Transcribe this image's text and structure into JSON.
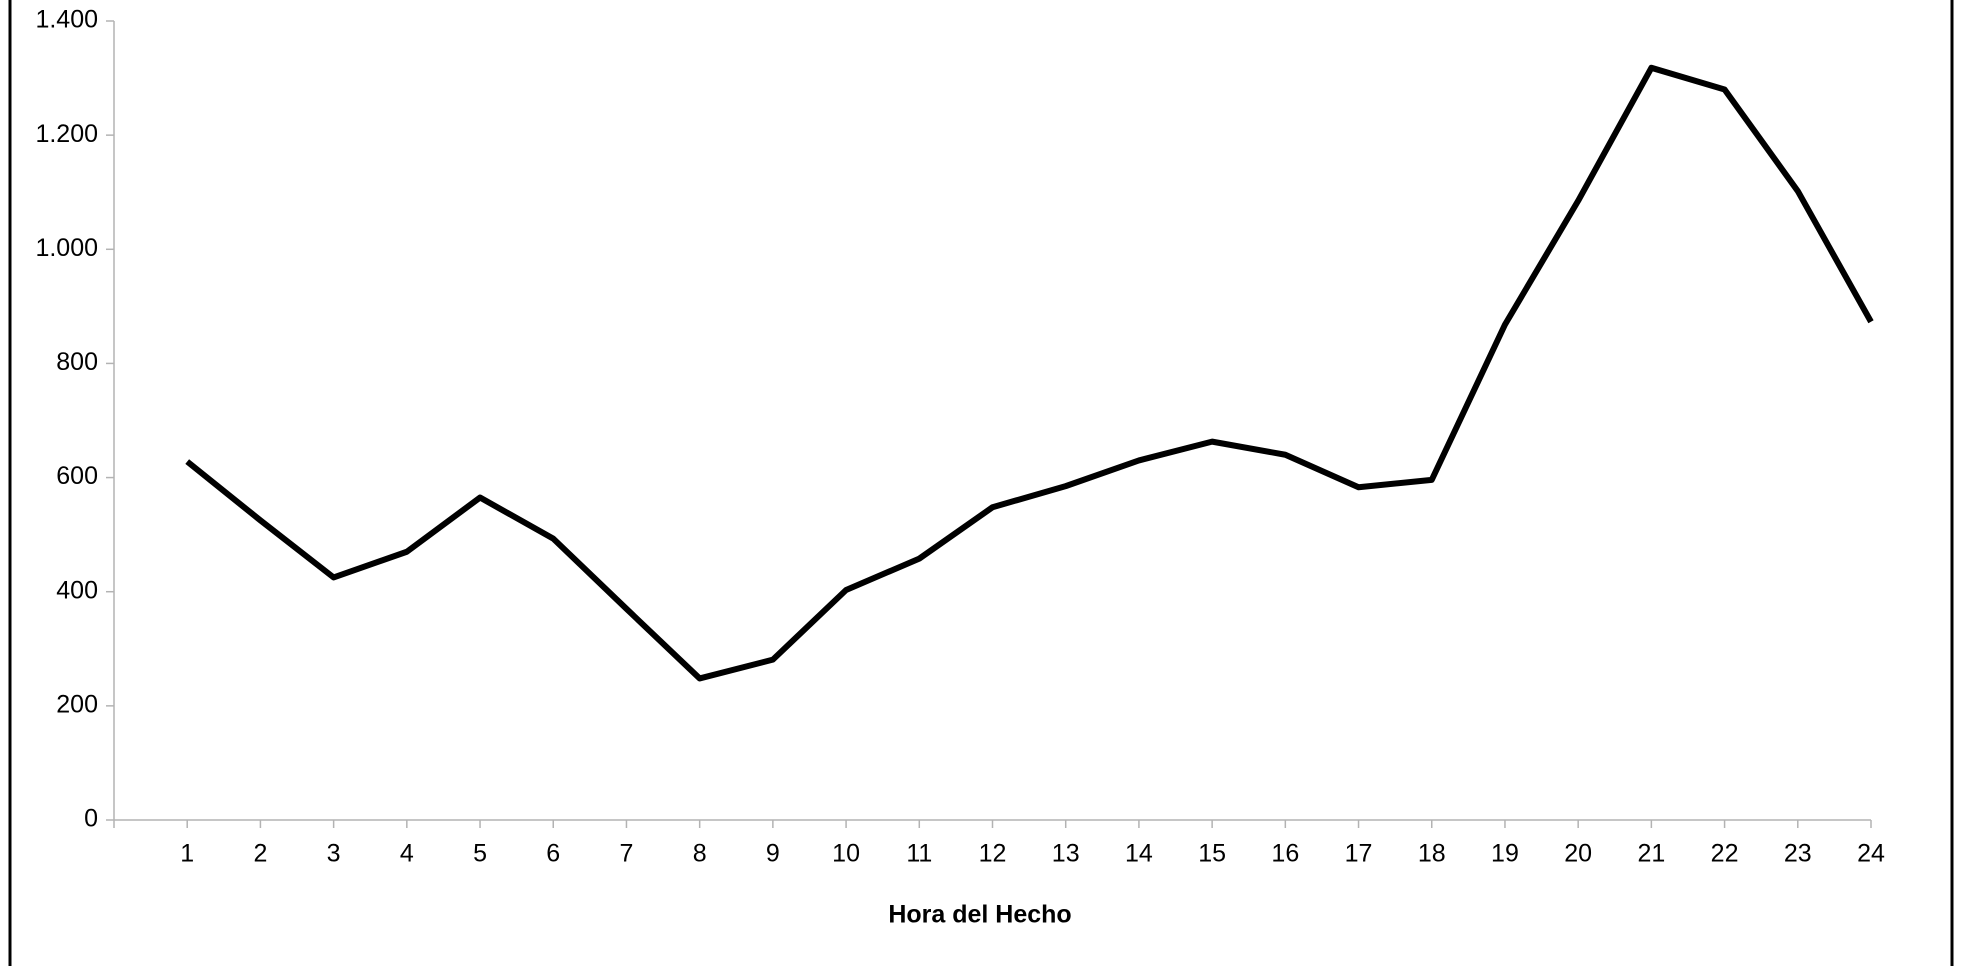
{
  "chart_data": {
    "type": "line",
    "x_label": "Hora del Hecho",
    "categories": [
      "1",
      "2",
      "3",
      "4",
      "5",
      "6",
      "7",
      "8",
      "9",
      "10",
      "11",
      "12",
      "13",
      "14",
      "15",
      "16",
      "17",
      "18",
      "19",
      "20",
      "21",
      "22",
      "23",
      "24"
    ],
    "series": [
      {
        "name": "",
        "color": "#000000",
        "values": [
          628,
          525,
          425,
          470,
          565,
          493,
          370,
          248,
          281,
          403,
          458,
          548,
          585,
          630,
          663,
          640,
          583,
          596,
          868,
          1085,
          1318,
          1280,
          1102,
          873
        ]
      }
    ],
    "ylim": [
      0,
      1400
    ],
    "yticks": [
      0,
      200,
      400,
      600,
      800,
      {
        "value": 1000,
        "label": "1.000"
      },
      {
        "value": 1200,
        "label": "1.200"
      },
      {
        "value": 1400,
        "label": "1.400"
      }
    ],
    "grid": false
  }
}
